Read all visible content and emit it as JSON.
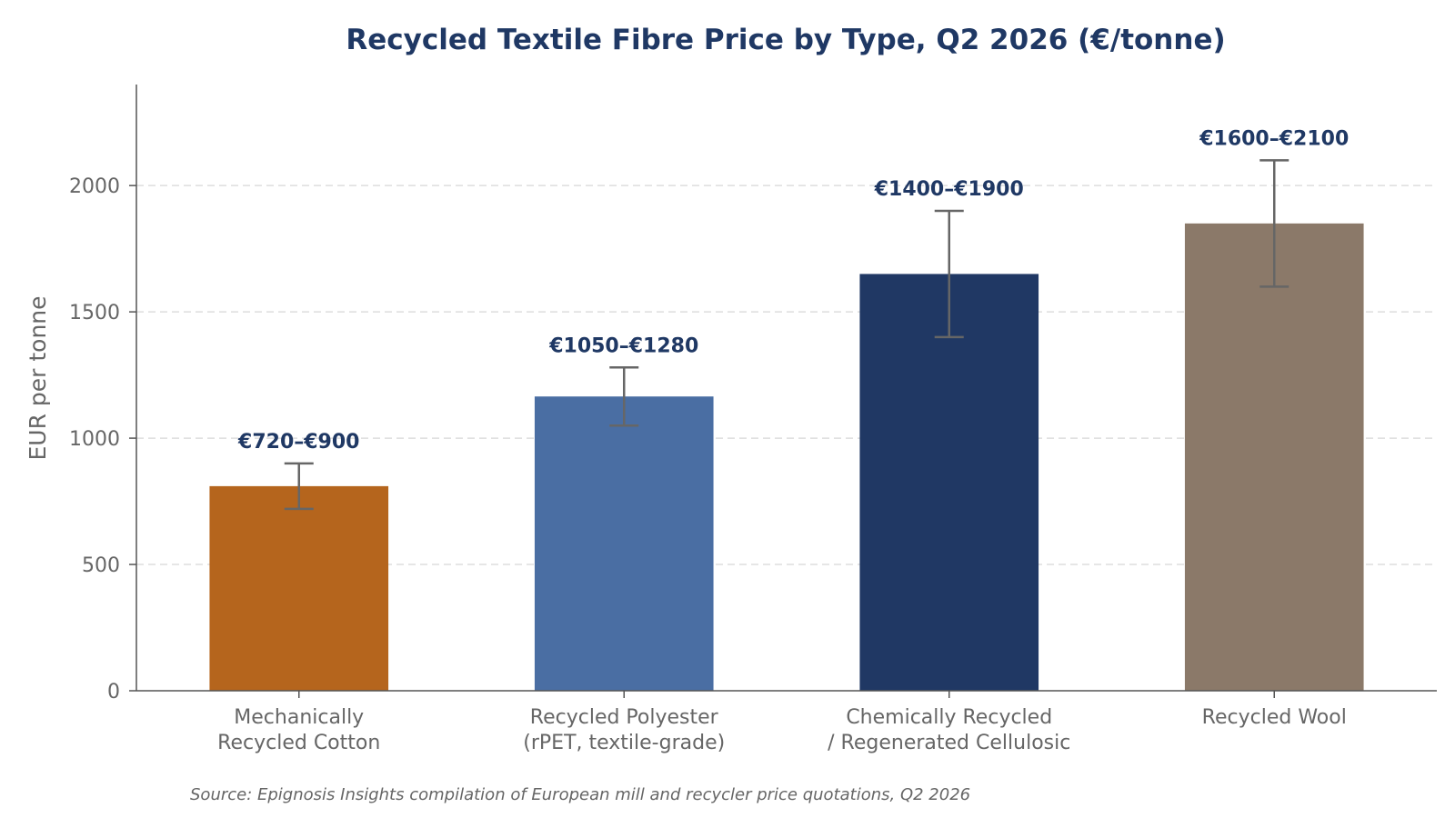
{
  "chart_data": {
    "type": "bar",
    "title": "Recycled Textile Fibre Price by Type, Q2 2026 (€/tonne)",
    "ylabel": "EUR per tonne",
    "xlabel": "",
    "ylim": [
      0,
      2400
    ],
    "yticks": [
      0,
      500,
      1000,
      1500,
      2000
    ],
    "grid": true,
    "categories": [
      [
        "Mechanically",
        "Recycled Cotton"
      ],
      [
        "Recycled Polyester",
        "(rPET, textile-grade)"
      ],
      [
        "Chemically Recycled",
        "/ Regenerated Cellulosic"
      ],
      [
        "Recycled Wool"
      ]
    ],
    "values": [
      810,
      1165,
      1650,
      1850
    ],
    "ranges": [
      [
        720,
        900
      ],
      [
        1050,
        1280
      ],
      [
        1400,
        1900
      ],
      [
        1600,
        2100
      ]
    ],
    "data_labels": [
      "€720–€900",
      "€1050–€1280",
      "€1400–€1900",
      "€1600–€2100"
    ],
    "colors": [
      "#b5651d",
      "#4a6ea3",
      "#203864",
      "#8b7969"
    ],
    "source": "Source: Epignosis Insights compilation of European mill and recycler price quotations, Q2 2026"
  }
}
